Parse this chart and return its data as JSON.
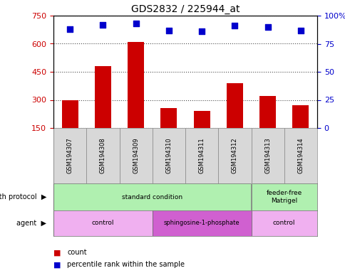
{
  "title": "GDS2832 / 225944_at",
  "samples": [
    "GSM194307",
    "GSM194308",
    "GSM194309",
    "GSM194310",
    "GSM194311",
    "GSM194312",
    "GSM194313",
    "GSM194314"
  ],
  "counts": [
    300,
    480,
    610,
    255,
    240,
    390,
    320,
    270
  ],
  "percentile_ranks": [
    88,
    92,
    93,
    87,
    86,
    91,
    90,
    87
  ],
  "ylim_left": [
    150,
    750
  ],
  "ylim_right": [
    0,
    100
  ],
  "yticks_left": [
    150,
    300,
    450,
    600,
    750
  ],
  "yticks_right": [
    0,
    25,
    50,
    75,
    100
  ],
  "bar_color": "#cc0000",
  "dot_color": "#0000cc",
  "gp_groups": [
    {
      "label": "standard condition",
      "xstart": 0,
      "xend": 6,
      "color": "#b0f0b0"
    },
    {
      "label": "feeder-free\nMatrigel",
      "xstart": 6,
      "xend": 8,
      "color": "#b0f0b0"
    }
  ],
  "ag_groups": [
    {
      "label": "control",
      "xstart": 0,
      "xend": 3,
      "color": "#f0b0f0"
    },
    {
      "label": "sphingosine-1-phosphate",
      "xstart": 3,
      "xend": 6,
      "color": "#d060d0"
    },
    {
      "label": "control",
      "xstart": 6,
      "xend": 8,
      "color": "#f0b0f0"
    }
  ],
  "legend_count_color": "#cc0000",
  "legend_dot_color": "#0000cc",
  "left_tick_color": "#cc0000",
  "right_tick_color": "#0000cc",
  "gp_label": "growth protocol",
  "ag_label": "agent",
  "legend_count_text": "count",
  "legend_dot_text": "percentile rank within the sample"
}
